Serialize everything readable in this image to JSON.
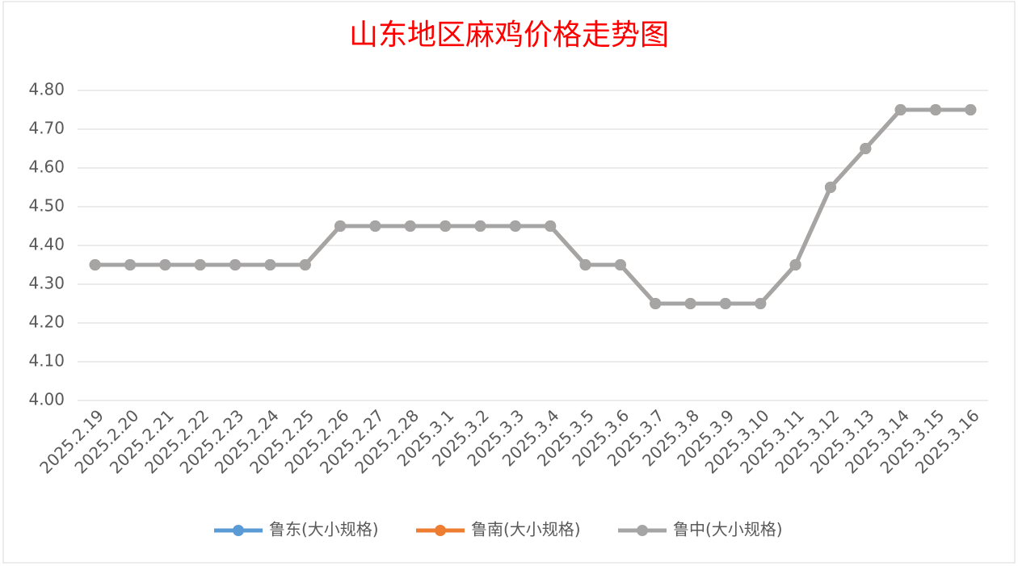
{
  "chart_data": {
    "type": "line",
    "title": "山东地区麻鸡价格走势图",
    "categories": [
      "2025.2.19",
      "2025.2.20",
      "2025.2.21",
      "2025.2.22",
      "2025.2.23",
      "2025.2.24",
      "2025.2.25",
      "2025.2.26",
      "2025.2.27",
      "2025.2.28",
      "2025.3.1",
      "2025.3.2",
      "2025.3.3",
      "2025.3.4",
      "2025.3.5",
      "2025.3.6",
      "2025.3.7",
      "2025.3.8",
      "2025.3.9",
      "2025.3.10",
      "2025.3.11",
      "2025.3.12",
      "2025.3.13",
      "2025.3.14",
      "2025.3.15",
      "2025.3.16"
    ],
    "series": [
      {
        "name": "鲁东(大小规格)",
        "color": "#5b9bd5",
        "values": [
          4.35,
          4.35,
          4.35,
          4.35,
          4.35,
          4.35,
          4.35,
          4.45,
          4.45,
          4.45,
          4.45,
          4.45,
          4.45,
          4.45,
          4.35,
          4.35,
          4.25,
          4.25,
          4.25,
          4.25,
          4.35,
          4.55,
          4.65,
          4.75,
          4.75,
          4.75
        ]
      },
      {
        "name": "鲁南(大小规格)",
        "color": "#ed7d31",
        "values": [
          4.35,
          4.35,
          4.35,
          4.35,
          4.35,
          4.35,
          4.35,
          4.45,
          4.45,
          4.45,
          4.45,
          4.45,
          4.45,
          4.45,
          4.35,
          4.35,
          4.25,
          4.25,
          4.25,
          4.25,
          4.35,
          4.55,
          4.65,
          4.75,
          4.75,
          4.75
        ]
      },
      {
        "name": "鲁中(大小规格)",
        "color": "#a5a5a5",
        "values": [
          4.35,
          4.35,
          4.35,
          4.35,
          4.35,
          4.35,
          4.35,
          4.45,
          4.45,
          4.45,
          4.45,
          4.45,
          4.45,
          4.45,
          4.35,
          4.35,
          4.25,
          4.25,
          4.25,
          4.25,
          4.35,
          4.55,
          4.65,
          4.75,
          4.75,
          4.75
        ]
      }
    ],
    "ylim": [
      4,
      4.8
    ],
    "yticks": [
      {
        "value": 4,
        "label": "4.00"
      },
      {
        "value": 4.1,
        "label": "4.10"
      },
      {
        "value": 4.2,
        "label": "4.20"
      },
      {
        "value": 4.3,
        "label": "4.30"
      },
      {
        "value": 4.4,
        "label": "4.40"
      },
      {
        "value": 4.5,
        "label": "4.50"
      },
      {
        "value": 4.6,
        "label": "4.60"
      },
      {
        "value": 4.7,
        "label": "4.70"
      },
      {
        "value": 4.8,
        "label": "4.80"
      }
    ],
    "grid": true,
    "legend": "bottom"
  }
}
